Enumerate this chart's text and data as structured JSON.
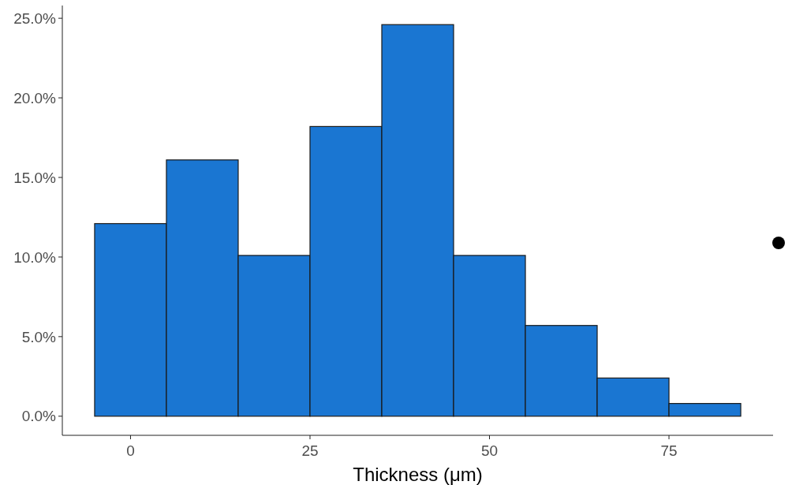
{
  "chart_data": {
    "type": "histogram",
    "xlabel": "Thickness (μm)",
    "bins": [
      -5,
      5,
      15,
      25,
      35,
      45,
      55,
      65,
      75,
      85
    ],
    "values": [
      12.1,
      16.1,
      10.1,
      18.2,
      24.6,
      10.1,
      5.7,
      2.4,
      0.8
    ],
    "color": "#1a76d2",
    "xlim": [
      -9.5,
      89.5
    ],
    "ylim": [
      -1.2,
      25.8
    ],
    "xticks": [
      0,
      25,
      50,
      75
    ],
    "yticks": [
      {
        "value": 0,
        "label": "0.0%"
      },
      {
        "value": 5,
        "label": "5.0%"
      },
      {
        "value": 10,
        "label": "10.0%"
      },
      {
        "value": 15,
        "label": "15.0%"
      },
      {
        "value": 20,
        "label": "20.0%"
      },
      {
        "value": 25,
        "label": "25.0%"
      }
    ],
    "grid": false
  }
}
